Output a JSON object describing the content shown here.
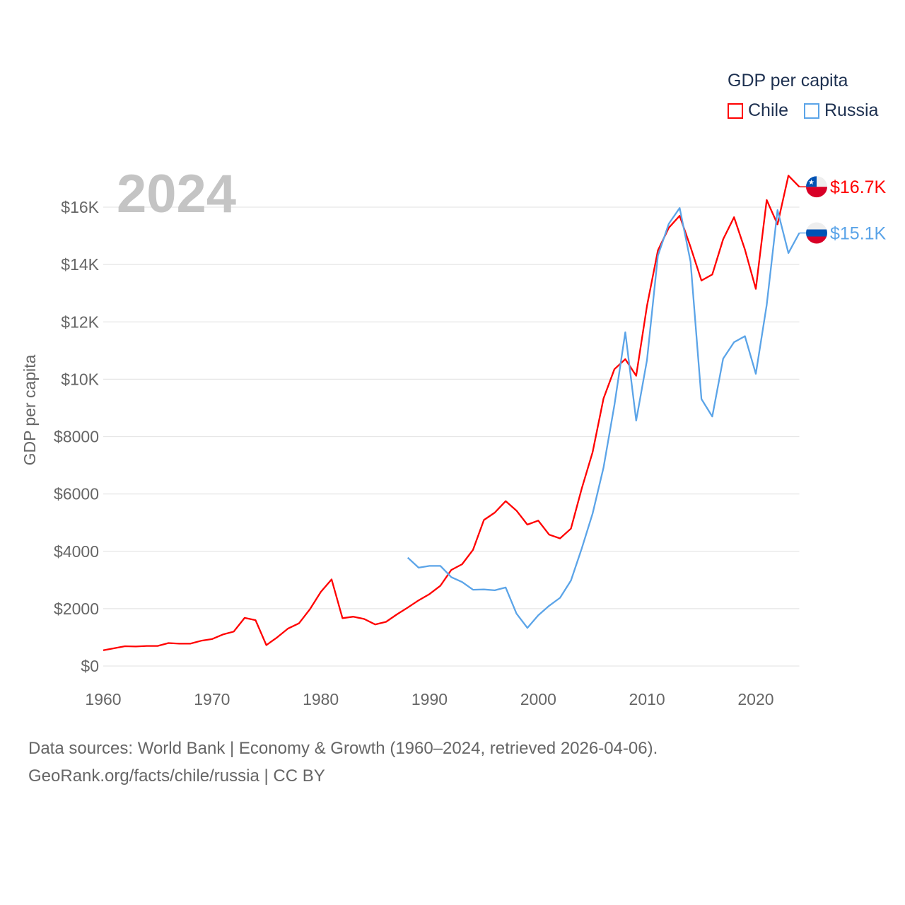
{
  "chart_data": {
    "type": "line",
    "title": "",
    "year_label": "2024",
    "xlabel": "",
    "ylabel": "GDP per capita",
    "xlim": [
      1960,
      2024
    ],
    "ylim": [
      0,
      16000
    ],
    "grid": true,
    "x_ticks": [
      "1960",
      "1970",
      "1980",
      "1990",
      "2000",
      "2010",
      "2020"
    ],
    "y_ticks": [
      {
        "value": 0,
        "label": "$0"
      },
      {
        "value": 2000,
        "label": "$2000"
      },
      {
        "value": 4000,
        "label": "$4000"
      },
      {
        "value": 6000,
        "label": "$6000"
      },
      {
        "value": 8000,
        "label": "$8000"
      },
      {
        "value": 10000,
        "label": "$10K"
      },
      {
        "value": 12000,
        "label": "$12K"
      },
      {
        "value": 14000,
        "label": "$14K"
      },
      {
        "value": 16000,
        "label": "$16K"
      }
    ],
    "legend": {
      "title": "GDP per capita",
      "placement": "top-right"
    },
    "series": [
      {
        "name": "Chile",
        "color": "#ff0000",
        "end_label": "$16.7K",
        "flag": "chile-flag",
        "start_year": 1960,
        "values": [
          550,
          620,
          690,
          680,
          700,
          700,
          800,
          780,
          780,
          880,
          940,
          1100,
          1200,
          1680,
          1600,
          730,
          1000,
          1310,
          1490,
          1980,
          2580,
          3020,
          1670,
          1720,
          1640,
          1450,
          1540,
          1800,
          2040,
          2290,
          2510,
          2800,
          3350,
          3550,
          4050,
          5090,
          5350,
          5750,
          5420,
          4930,
          5070,
          4580,
          4450,
          4790,
          6190,
          7460,
          9330,
          10350,
          10700,
          10120,
          12560,
          14490,
          15280,
          15700,
          14610,
          13440,
          13650,
          14880,
          15650,
          14520,
          13150,
          16250,
          15400,
          17100,
          16710
        ]
      },
      {
        "name": "Russia",
        "color": "#5ba4e8",
        "end_label": "$15.1K",
        "flag": "russia-flag",
        "start_year": 1988,
        "values": [
          3780,
          3430,
          3490,
          3490,
          3100,
          2930,
          2660,
          2670,
          2640,
          2740,
          1830,
          1330,
          1770,
          2100,
          2380,
          2980,
          4100,
          5320,
          6920,
          9100,
          11640,
          8560,
          10670,
          14310,
          15420,
          15970,
          14100,
          9310,
          8700,
          10720,
          11290,
          11500,
          10190,
          12590,
          15900,
          14400,
          15100
        ]
      }
    ]
  },
  "footer": {
    "line1": "Data sources: World Bank | Economy & Growth (1960–2024, retrieved 2026-04-06).",
    "line2": "GeoRank.org/facts/chile/russia | CC BY"
  }
}
